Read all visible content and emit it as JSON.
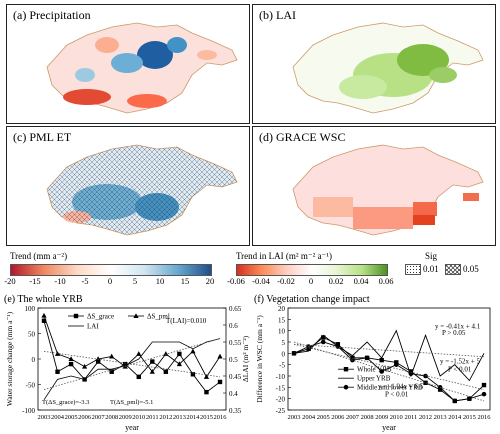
{
  "maps": {
    "a": {
      "title": "(a) Precipitation"
    },
    "b": {
      "title": "(b) LAI"
    },
    "c": {
      "title": "(c) PML ET"
    },
    "d": {
      "title": "(d) GRACE WSC"
    }
  },
  "legend": {
    "trend_title": "Trend (mm a⁻²)",
    "trend_ticks": [
      "-20",
      "-15",
      "-10",
      "-5",
      "0",
      "5",
      "10",
      "15",
      "20"
    ],
    "lai_title": "Trend in LAI (m² m⁻² a⁻¹)",
    "lai_ticks": [
      "-0.06",
      "-0.04",
      "-0.02",
      "0",
      "0.02",
      "0.04",
      "0.06"
    ],
    "sig_title": "Sig",
    "sig_ticks": [
      "0.01",
      "0.05"
    ],
    "colors": {
      "neg": "#d7191c",
      "pos": "#2166ac",
      "lai_neg": "#e66101",
      "lai_pos": "#66a61e"
    }
  },
  "chart_data": [
    {
      "type": "line",
      "title": "(e) The whole YRB",
      "xlabel": "year",
      "ylabel": "Water storage change (mm a⁻¹)",
      "ylabel_right": "ΔLAI (m² m⁻²)",
      "x": [
        "2003",
        "2004",
        "2005",
        "2006",
        "2007",
        "2008",
        "2009",
        "2010",
        "2011",
        "2012",
        "2013",
        "2014",
        "2015",
        "2016"
      ],
      "ylim": [
        -100,
        100
      ],
      "yticks": [
        "100",
        "50",
        "0",
        "-50",
        "-100"
      ],
      "ylim_right": [
        0.35,
        0.65
      ],
      "yticks_right": [
        "0.65",
        "0.6",
        "0.55",
        "0.5",
        "0.45",
        "0.4",
        "0.35"
      ],
      "series": [
        {
          "name": "ΔS_grace",
          "values": [
            75,
            -25,
            -10,
            -40,
            -5,
            -25,
            -10,
            -35,
            -5,
            -25,
            10,
            -30,
            -65,
            -45
          ]
        },
        {
          "name": "ΔS_pml",
          "values": [
            85,
            10,
            0,
            -15,
            0,
            5,
            -15,
            10,
            -25,
            10,
            -10,
            15,
            -35,
            5
          ]
        },
        {
          "name": "LAI",
          "values": [
            0.38,
            0.44,
            0.45,
            0.44,
            0.47,
            0.47,
            0.48,
            0.5,
            0.55,
            0.55,
            0.55,
            0.53,
            0.55,
            0.56
          ]
        }
      ],
      "annotations": [
        "T(LAI)=0.010",
        "T(ΔS_grace)=-3.3",
        "T(ΔS_pml)=-5.1"
      ]
    },
    {
      "type": "line",
      "title": "(f) Vegetation change impact",
      "xlabel": "year",
      "ylabel": "Difference in WSC (mm a⁻¹)",
      "x": [
        "2003",
        "2004",
        "2005",
        "2006",
        "2007",
        "2008",
        "2009",
        "2010",
        "2011",
        "2012",
        "2013",
        "2014",
        "2015",
        "2016"
      ],
      "ylim": [
        -25,
        20
      ],
      "yticks": [
        "20",
        "15",
        "10",
        "5",
        "0",
        "-5",
        "-10",
        "-15",
        "-20",
        "-25"
      ],
      "series": [
        {
          "name": "Whole YRB",
          "values": [
            0,
            2,
            7,
            4,
            -2,
            -2,
            -3,
            -4,
            -8,
            -13,
            -16,
            -21,
            -20,
            -14
          ]
        },
        {
          "name": "Upper YRB",
          "values": [
            0,
            1,
            8,
            3,
            -1,
            5,
            -2,
            10,
            -10,
            8,
            -10,
            -5,
            -12,
            0
          ]
        },
        {
          "name": "Middle and lower YRB",
          "values": [
            0,
            3,
            5,
            3,
            -3,
            -2,
            -8,
            -5,
            -9,
            -10,
            -15,
            -21,
            -20,
            -18
          ]
        }
      ],
      "annotations": [
        "y = -0.41x + 4.1",
        "P > 0.05",
        "y = -1.52x + 5",
        "P < 0.01",
        "y = -1.94x + 6.5",
        "P < 0.01"
      ]
    }
  ]
}
